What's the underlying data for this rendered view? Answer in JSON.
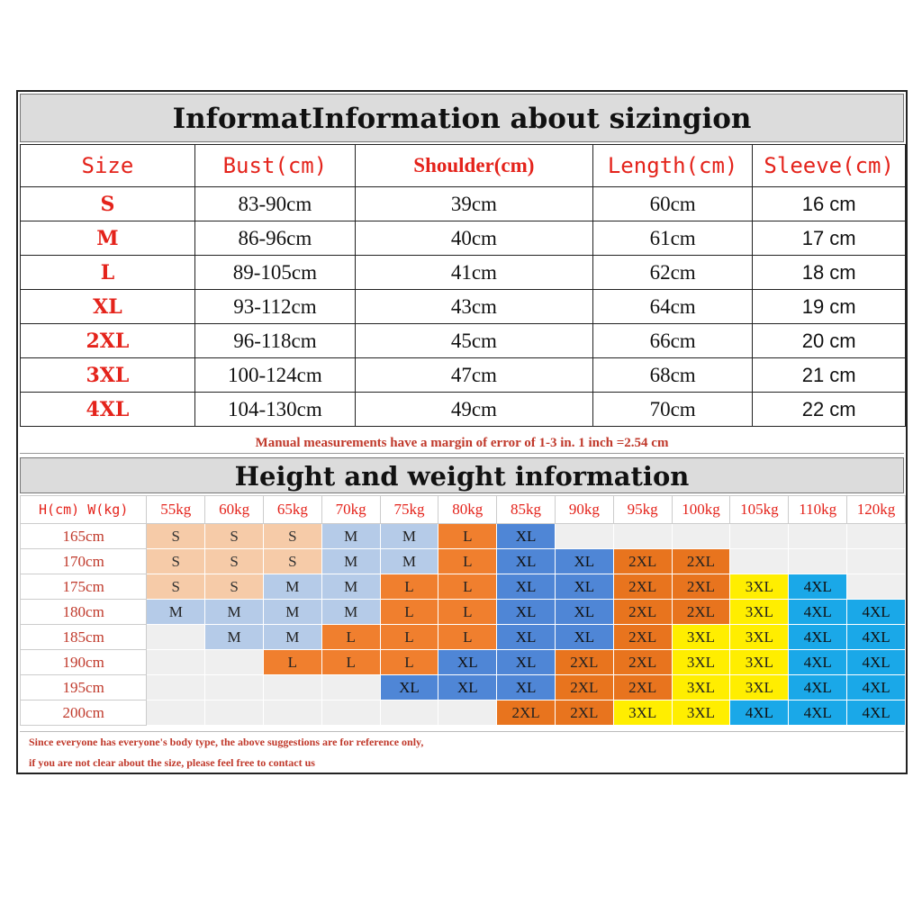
{
  "size_chart": {
    "title": "InformatInformation about sizingion",
    "headers": [
      "Size",
      "Bust(cm)",
      "Shoulder(cm)",
      "Length(cm)",
      "Sleeve(cm)"
    ],
    "rows": [
      [
        "S",
        "83-90cm",
        "39cm",
        "60cm",
        "16 cm"
      ],
      [
        "M",
        "86-96cm",
        "40cm",
        "61cm",
        "17 cm"
      ],
      [
        "L",
        "89-105cm",
        "41cm",
        "62cm",
        "18 cm"
      ],
      [
        "XL",
        "93-112cm",
        "43cm",
        "64cm",
        "19 cm"
      ],
      [
        "2XL",
        "96-118cm",
        "45cm",
        "66cm",
        "20 cm"
      ],
      [
        "3XL",
        "100-124cm",
        "47cm",
        "68cm",
        "21 cm"
      ],
      [
        "4XL",
        "104-130cm",
        "49cm",
        "70cm",
        "22 cm"
      ]
    ],
    "note": "Manual measurements have a margin of error of 1-3 in. 1 inch =2.54 cm"
  },
  "hw_chart": {
    "title": "Height and weight information",
    "corner": "H(cm) W(kg)",
    "weights": [
      "55kg",
      "60kg",
      "65kg",
      "70kg",
      "75kg",
      "80kg",
      "85kg",
      "90kg",
      "95kg",
      "100kg",
      "105kg",
      "110kg",
      "120kg"
    ],
    "rows": [
      {
        "height": "165cm",
        "cells": [
          "S",
          "S",
          "S",
          "M",
          "M",
          "L",
          "XL",
          "",
          "",
          "",
          "",
          "",
          ""
        ]
      },
      {
        "height": "170cm",
        "cells": [
          "S",
          "S",
          "S",
          "M",
          "M",
          "L",
          "XL",
          "XL",
          "2XL",
          "2XL",
          "",
          "",
          ""
        ]
      },
      {
        "height": "175cm",
        "cells": [
          "S",
          "S",
          "M",
          "M",
          "L",
          "L",
          "XL",
          "XL",
          "2XL",
          "2XL",
          "3XL",
          "4XL",
          ""
        ]
      },
      {
        "height": "180cm",
        "cells": [
          "M",
          "M",
          "M",
          "M",
          "L",
          "L",
          "XL",
          "XL",
          "2XL",
          "2XL",
          "3XL",
          "4XL",
          "4XL"
        ]
      },
      {
        "height": "185cm",
        "cells": [
          "",
          "M",
          "M",
          "L",
          "L",
          "L",
          "XL",
          "XL",
          "2XL",
          "3XL",
          "3XL",
          "4XL",
          "4XL"
        ]
      },
      {
        "height": "190cm",
        "cells": [
          "",
          "",
          "L",
          "L",
          "L",
          "XL",
          "XL",
          "2XL",
          "2XL",
          "3XL",
          "3XL",
          "4XL",
          "4XL"
        ]
      },
      {
        "height": "195cm",
        "cells": [
          "",
          "",
          "",
          "",
          "XL",
          "XL",
          "XL",
          "2XL",
          "2XL",
          "3XL",
          "3XL",
          "4XL",
          "4XL"
        ]
      },
      {
        "height": "200cm",
        "cells": [
          "",
          "",
          "",
          "",
          "",
          "",
          "2XL",
          "2XL",
          "3XL",
          "3XL",
          "4XL",
          "4XL",
          "4XL"
        ]
      }
    ],
    "note_lines": [
      "Since everyone has everyone's body type, the above suggestions are for reference only,",
      "if you are not clear about the size, please feel free to contact us"
    ]
  },
  "colors": {
    "S": "#f6cba8",
    "M": "#b5cbe8",
    "L": "#f07f2e",
    "XL": "#4f86d6",
    "2XL": "#e8741e",
    "3XL": "#ffee00",
    "4XL": "#1aa8e8",
    "accent_red": "#e4231b"
  }
}
